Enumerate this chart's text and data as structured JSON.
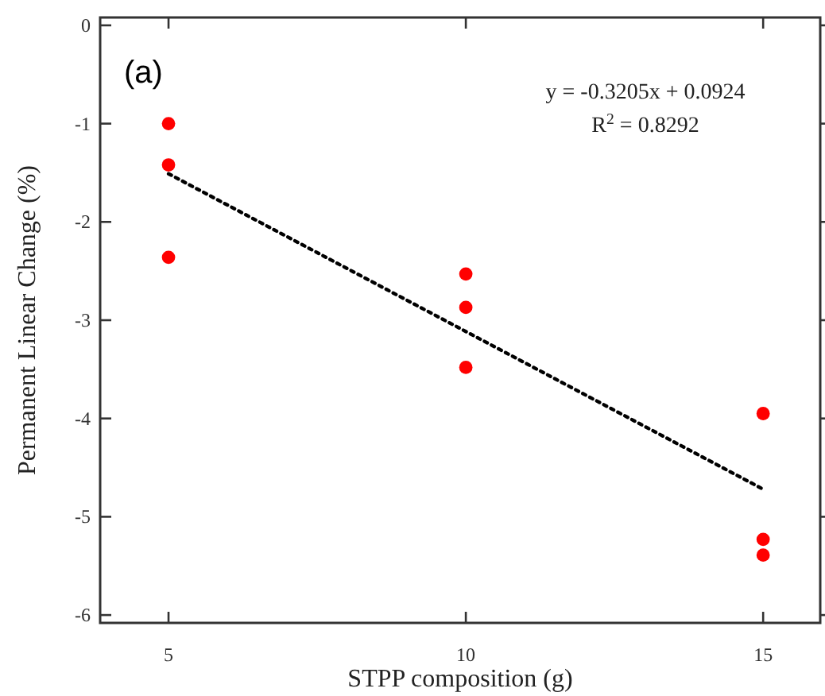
{
  "chart_data": {
    "type": "scatter",
    "xlabel": "STPP composition (g)",
    "ylabel": "Permanent Linear Change (%)",
    "annotations": [
      "(a)",
      "y = -0.3205x + 0.0924",
      "R$^{2}$ = 0.8292"
    ],
    "xlim": [
      3.85,
      15.96
    ],
    "xticks": [
      5,
      10,
      15
    ],
    "ylim": [
      -6.08,
      0.08
    ],
    "yticks": [
      0,
      -1,
      -2,
      -3,
      -4,
      -5,
      -6
    ],
    "grid": false,
    "marker": "circle",
    "series": [
      {
        "color": "#ff0000",
        "x": [
          5,
          5,
          5,
          10,
          10,
          10,
          15,
          15,
          15
        ],
        "values": [
          -1.0,
          -1.42,
          -2.36,
          -2.53,
          -2.87,
          -3.48,
          -3.95,
          -5.23,
          -5.39
        ]
      },
      {
        "type": "line",
        "color": "#000000",
        "marker": "none",
        "line_style": "dotted",
        "x": [
          5,
          15
        ],
        "values": [
          -1.51,
          -4.72
        ]
      }
    ]
  }
}
